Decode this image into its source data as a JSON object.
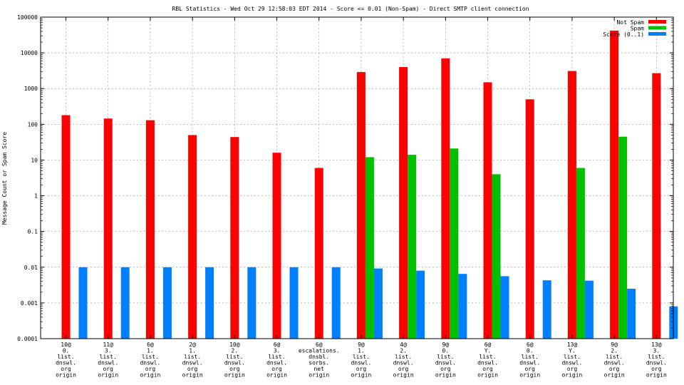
{
  "chart_data": {
    "type": "bar",
    "title": "RBL Statistics - Wed Oct 29 12:58:03 EDT 2014 - Score <= 0.01 (Non-Spam) - Direct SMTP client connection",
    "ylabel": "Message Count or Spam Score",
    "xlabel": "",
    "yscale": "log",
    "ylim": [
      0.0001,
      100000
    ],
    "y_ticks": [
      "0.0001",
      "0.001",
      "0.01",
      "0.1",
      "1",
      "10",
      "100",
      "1000",
      "10000",
      "100000"
    ],
    "grid": true,
    "legend_position": "top-right",
    "categories": [
      [
        "10@",
        "0.",
        "list.",
        "dnswl.",
        "org",
        "origin"
      ],
      [
        "11@",
        "3.",
        "list.",
        "dnswl.",
        "org",
        "origin"
      ],
      [
        "6@",
        "1.",
        "list.",
        "dnswl.",
        "org",
        "origin"
      ],
      [
        "2@",
        "1.",
        "list.",
        "dnswl.",
        "org",
        "origin"
      ],
      [
        "10@",
        "2.",
        "list.",
        "dnswl.",
        "org",
        "origin"
      ],
      [
        "6@",
        "3.",
        "list.",
        "dnswl.",
        "org",
        "origin"
      ],
      [
        "6@",
        "escalations.",
        "dnsbl.",
        "sorbs.",
        "net",
        "origin"
      ],
      [
        "9@",
        "1.",
        "list.",
        "dnswl.",
        "org",
        "origin"
      ],
      [
        "4@",
        "2.",
        "list.",
        "dnswl.",
        "org",
        "origin"
      ],
      [
        "9@",
        "0.",
        "list.",
        "dnswl.",
        "org",
        "origin"
      ],
      [
        "6@",
        "Y.",
        "list.",
        "dnswl.",
        "org",
        "origin"
      ],
      [
        "6@",
        "0.",
        "list.",
        "dnswl.",
        "org",
        "origin"
      ],
      [
        "13@",
        "Y.",
        "list.",
        "dnswl.",
        "org",
        "origin"
      ],
      [
        "9@",
        "2.",
        "list.",
        "dnswl.",
        "org",
        "origin"
      ],
      [
        "13@",
        "3.",
        "list.",
        "dnswl.",
        "org",
        "origin"
      ]
    ],
    "series": [
      {
        "name": "Not Spam",
        "color": "#ff0000",
        "values": [
          180,
          145,
          130,
          50,
          44,
          16,
          6,
          2900,
          4000,
          7000,
          1500,
          500,
          3100,
          42000,
          2700
        ]
      },
      {
        "name": "Spam",
        "color": "#00c000",
        "values": [
          null,
          null,
          null,
          null,
          null,
          null,
          null,
          12,
          14,
          21,
          4,
          null,
          6,
          45,
          null
        ]
      },
      {
        "name": "Score (0..1)",
        "color": "#0080ff",
        "values": [
          0.01,
          0.01,
          0.01,
          0.01,
          0.01,
          0.01,
          0.01,
          0.0092,
          0.008,
          0.0065,
          0.0056,
          0.0043,
          0.0042,
          0.0025,
          0.0008
        ]
      }
    ]
  }
}
